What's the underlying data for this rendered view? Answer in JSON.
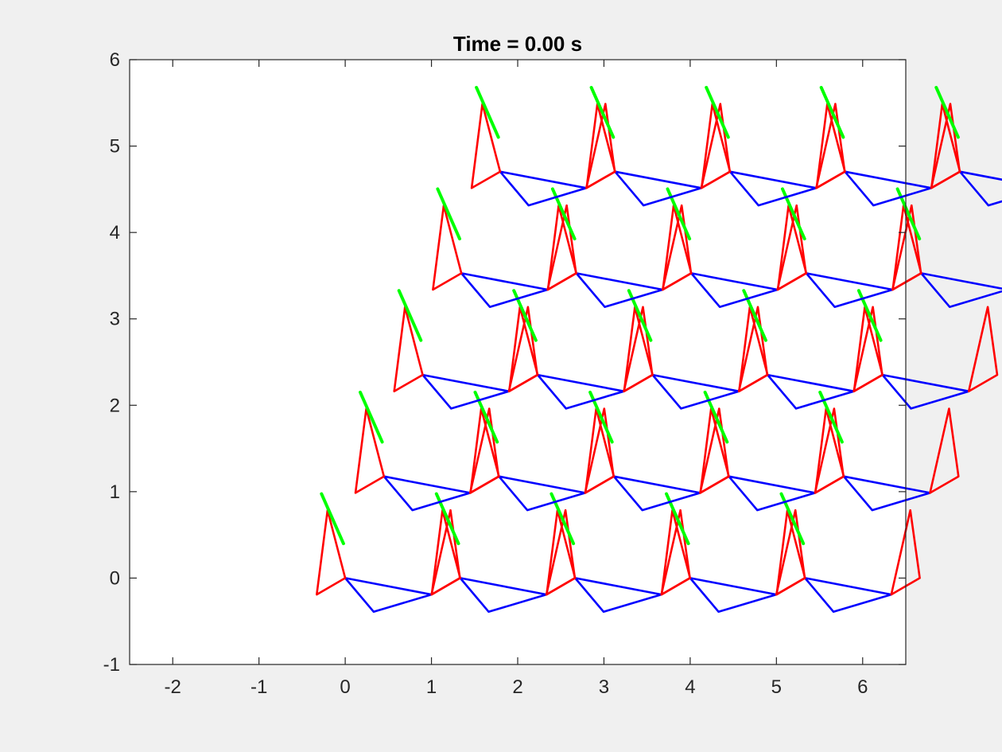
{
  "chart_data": {
    "type": "line",
    "title": "Time = 0.00 s",
    "xlabel": "",
    "ylabel": "",
    "xlim": [
      -2.5,
      6.5
    ],
    "ylim": [
      -1,
      6
    ],
    "xticks": [
      "-2",
      "-1",
      "0",
      "1",
      "2",
      "3",
      "4",
      "5",
      "6"
    ],
    "yticks": [
      "-1",
      "0",
      "1",
      "2",
      "3",
      "4",
      "5",
      "6"
    ],
    "grid": false,
    "legend": "none",
    "lattice": {
      "rows": 5,
      "cols": 5,
      "row_shift": [
        0.449,
        1.176
      ],
      "col_shift": [
        1.333,
        0
      ]
    },
    "unit_cell": {
      "blue_triangle": [
        [
          0,
          0
        ],
        [
          0.33,
          -0.39
        ],
        [
          1.0,
          -0.19
        ]
      ],
      "red_triangle": [
        [
          1.0,
          -0.19
        ],
        [
          1.33,
          0
        ],
        [
          1.221,
          0.785
        ]
      ],
      "red_spike": [
        [
          0,
          0
        ],
        [
          -0.33,
          -0.19
        ],
        [
          -0.205,
          0.785
        ],
        [
          0,
          0
        ]
      ],
      "green_bar": [
        [
          -0.275,
          0.975
        ],
        [
          -0.02,
          0.399
        ]
      ]
    },
    "colors": {
      "blue": "#0000ff",
      "red": "#ff0000",
      "green": "#00ff00",
      "axes": "#262626",
      "plot_bg": "#ffffff",
      "figure_bg": "#f0f0f0"
    }
  }
}
